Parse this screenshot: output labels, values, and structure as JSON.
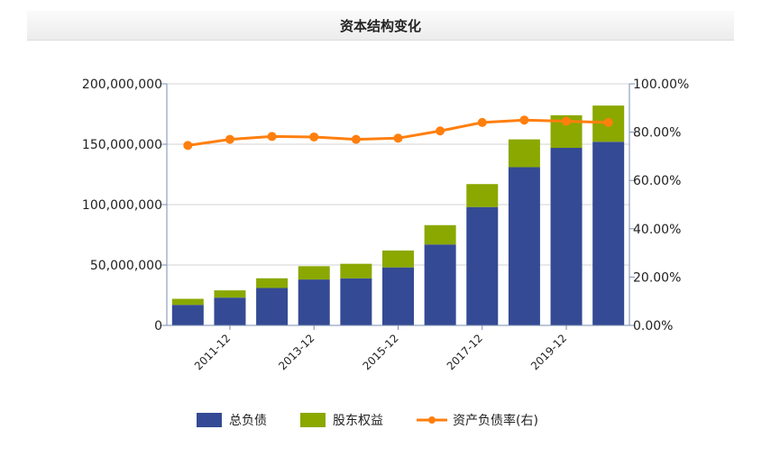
{
  "title": "资本结构变化",
  "colors": {
    "debt": "#344a94",
    "equity": "#8aa800",
    "ratio": "#ff7f0e",
    "grid": "#d3d3d3",
    "axis": "#7a8db0"
  },
  "chart_data": {
    "type": "bar",
    "stacked": true,
    "categories": [
      "2010-12",
      "2011-12",
      "2012-12",
      "2013-12",
      "2014-12",
      "2015-12",
      "2016-12",
      "2017-12",
      "2018-12",
      "2019-12",
      "2020-12"
    ],
    "x_tick_labels": [
      "2011-12",
      "2013-12",
      "2015-12",
      "2017-12",
      "2019-12"
    ],
    "series": [
      {
        "name": "总负债",
        "type": "bar",
        "axis": "left",
        "values": [
          17000000,
          23000000,
          31000000,
          38000000,
          39000000,
          48000000,
          67000000,
          98000000,
          131000000,
          147000000,
          152000000
        ]
      },
      {
        "name": "股东权益",
        "type": "bar",
        "axis": "left",
        "values": [
          5000000,
          6000000,
          8000000,
          11000000,
          12000000,
          14000000,
          16000000,
          19000000,
          23000000,
          27000000,
          30000000
        ]
      },
      {
        "name": "资产负债率(右)",
        "type": "line",
        "axis": "right",
        "values": [
          74.5,
          77.0,
          78.2,
          78.0,
          77.0,
          77.5,
          80.5,
          84.0,
          85.0,
          84.5,
          84.0
        ]
      }
    ],
    "y_left": {
      "min": 0,
      "max": 200000000,
      "ticks": [
        "0",
        "50,000,000",
        "100,000,000",
        "150,000,000",
        "200,000,000"
      ]
    },
    "y_right": {
      "min": 0,
      "max": 100,
      "ticks": [
        "0.00%",
        "20.00%",
        "40.00%",
        "60.00%",
        "80.00%",
        "100.00%"
      ]
    },
    "grid": true,
    "legend": {
      "position": "bottom",
      "labels": [
        "总负债",
        "股东权益",
        "资产负债率(右)"
      ]
    }
  }
}
